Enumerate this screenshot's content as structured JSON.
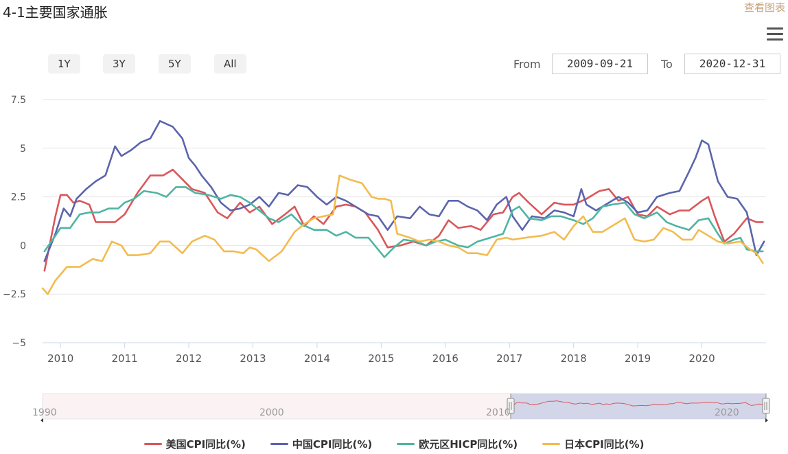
{
  "header": {
    "title": "4-1主要国家通胀",
    "view_link": "查看图表"
  },
  "range_selector": {
    "buttons": [
      "1Y",
      "3Y",
      "5Y",
      "All"
    ],
    "from_label": "From",
    "from_value": "2009-09-21",
    "to_label": "To",
    "to_value": "2020-12-31"
  },
  "navigator": {
    "labels": [
      "1990",
      "2000",
      "2010",
      "2020"
    ]
  },
  "colors": {
    "us": "#d9575a",
    "china": "#5b64ad",
    "euro": "#4db5a2",
    "japan": "#f3bb4e"
  },
  "chart_data": {
    "type": "line",
    "title": "",
    "xlabel": "",
    "ylabel": "",
    "ylim": [
      -5,
      7.5
    ],
    "xlim": [
      2009.72,
      2021.0
    ],
    "yticks": [
      -5,
      -2.5,
      0,
      2.5,
      5,
      7.5
    ],
    "ytick_labels": [
      "−5",
      "−2.5",
      "0",
      "2.5",
      "5",
      "7.5"
    ],
    "xticks": [
      2010,
      2011,
      2012,
      2013,
      2014,
      2015,
      2016,
      2017,
      2018,
      2019,
      2020
    ],
    "grid": true,
    "legend_position": "bottom",
    "series": [
      {
        "name": "美国CPI同比(%)",
        "key": "us",
        "points": [
          [
            2009.75,
            -1.3
          ],
          [
            2009.92,
            1.5
          ],
          [
            2010.0,
            2.6
          ],
          [
            2010.1,
            2.6
          ],
          [
            2010.2,
            2.2
          ],
          [
            2010.3,
            2.3
          ],
          [
            2010.45,
            2.1
          ],
          [
            2010.55,
            1.2
          ],
          [
            2010.7,
            1.2
          ],
          [
            2010.85,
            1.2
          ],
          [
            2011.0,
            1.6
          ],
          [
            2011.2,
            2.7
          ],
          [
            2011.4,
            3.6
          ],
          [
            2011.6,
            3.6
          ],
          [
            2011.75,
            3.9
          ],
          [
            2011.9,
            3.4
          ],
          [
            2012.05,
            2.9
          ],
          [
            2012.25,
            2.7
          ],
          [
            2012.45,
            1.7
          ],
          [
            2012.6,
            1.4
          ],
          [
            2012.8,
            2.2
          ],
          [
            2012.95,
            1.7
          ],
          [
            2013.1,
            2.0
          ],
          [
            2013.3,
            1.1
          ],
          [
            2013.5,
            1.6
          ],
          [
            2013.65,
            2.0
          ],
          [
            2013.8,
            1.0
          ],
          [
            2013.95,
            1.5
          ],
          [
            2014.1,
            1.1
          ],
          [
            2014.3,
            2.0
          ],
          [
            2014.45,
            2.1
          ],
          [
            2014.6,
            2.0
          ],
          [
            2014.75,
            1.7
          ],
          [
            2014.95,
            0.8
          ],
          [
            2015.1,
            -0.1
          ],
          [
            2015.3,
            0.0
          ],
          [
            2015.5,
            0.2
          ],
          [
            2015.7,
            0.0
          ],
          [
            2015.9,
            0.5
          ],
          [
            2016.05,
            1.3
          ],
          [
            2016.2,
            0.9
          ],
          [
            2016.4,
            1.0
          ],
          [
            2016.55,
            0.8
          ],
          [
            2016.75,
            1.6
          ],
          [
            2016.9,
            1.7
          ],
          [
            2017.05,
            2.5
          ],
          [
            2017.15,
            2.7
          ],
          [
            2017.3,
            2.2
          ],
          [
            2017.5,
            1.6
          ],
          [
            2017.7,
            2.2
          ],
          [
            2017.85,
            2.1
          ],
          [
            2018.0,
            2.1
          ],
          [
            2018.2,
            2.4
          ],
          [
            2018.4,
            2.8
          ],
          [
            2018.55,
            2.9
          ],
          [
            2018.7,
            2.3
          ],
          [
            2018.85,
            2.5
          ],
          [
            2019.0,
            1.6
          ],
          [
            2019.15,
            1.5
          ],
          [
            2019.3,
            2.0
          ],
          [
            2019.5,
            1.6
          ],
          [
            2019.65,
            1.8
          ],
          [
            2019.8,
            1.8
          ],
          [
            2020.0,
            2.3
          ],
          [
            2020.1,
            2.5
          ],
          [
            2020.2,
            1.5
          ],
          [
            2020.35,
            0.2
          ],
          [
            2020.5,
            0.6
          ],
          [
            2020.7,
            1.4
          ],
          [
            2020.85,
            1.2
          ],
          [
            2020.95,
            1.2
          ]
        ]
      },
      {
        "name": "中国CPI同比(%)",
        "key": "china",
        "points": [
          [
            2009.75,
            -0.8
          ],
          [
            2009.92,
            0.6
          ],
          [
            2010.05,
            1.9
          ],
          [
            2010.15,
            1.5
          ],
          [
            2010.25,
            2.4
          ],
          [
            2010.4,
            2.9
          ],
          [
            2010.55,
            3.3
          ],
          [
            2010.7,
            3.6
          ],
          [
            2010.85,
            5.1
          ],
          [
            2010.95,
            4.6
          ],
          [
            2011.1,
            4.9
          ],
          [
            2011.25,
            5.3
          ],
          [
            2011.4,
            5.5
          ],
          [
            2011.55,
            6.4
          ],
          [
            2011.75,
            6.1
          ],
          [
            2011.9,
            5.5
          ],
          [
            2012.0,
            4.5
          ],
          [
            2012.1,
            4.1
          ],
          [
            2012.2,
            3.6
          ],
          [
            2012.35,
            3.0
          ],
          [
            2012.5,
            2.2
          ],
          [
            2012.65,
            1.8
          ],
          [
            2012.8,
            1.9
          ],
          [
            2012.95,
            2.1
          ],
          [
            2013.1,
            2.5
          ],
          [
            2013.25,
            2.0
          ],
          [
            2013.4,
            2.7
          ],
          [
            2013.55,
            2.6
          ],
          [
            2013.7,
            3.1
          ],
          [
            2013.85,
            3.0
          ],
          [
            2014.0,
            2.5
          ],
          [
            2014.15,
            2.1
          ],
          [
            2014.3,
            2.5
          ],
          [
            2014.45,
            2.3
          ],
          [
            2014.6,
            2.0
          ],
          [
            2014.8,
            1.6
          ],
          [
            2014.95,
            1.5
          ],
          [
            2015.1,
            0.8
          ],
          [
            2015.25,
            1.5
          ],
          [
            2015.45,
            1.4
          ],
          [
            2015.6,
            2.0
          ],
          [
            2015.75,
            1.6
          ],
          [
            2015.9,
            1.5
          ],
          [
            2016.05,
            2.3
          ],
          [
            2016.2,
            2.3
          ],
          [
            2016.35,
            2.0
          ],
          [
            2016.5,
            1.8
          ],
          [
            2016.65,
            1.3
          ],
          [
            2016.8,
            2.1
          ],
          [
            2016.95,
            2.5
          ],
          [
            2017.05,
            1.5
          ],
          [
            2017.2,
            0.8
          ],
          [
            2017.35,
            1.5
          ],
          [
            2017.55,
            1.4
          ],
          [
            2017.7,
            1.8
          ],
          [
            2017.85,
            1.7
          ],
          [
            2018.0,
            1.5
          ],
          [
            2018.12,
            2.9
          ],
          [
            2018.2,
            2.1
          ],
          [
            2018.35,
            1.8
          ],
          [
            2018.5,
            2.1
          ],
          [
            2018.7,
            2.5
          ],
          [
            2018.85,
            2.2
          ],
          [
            2019.0,
            1.7
          ],
          [
            2019.15,
            1.8
          ],
          [
            2019.3,
            2.5
          ],
          [
            2019.5,
            2.7
          ],
          [
            2019.65,
            2.8
          ],
          [
            2019.8,
            3.8
          ],
          [
            2019.9,
            4.5
          ],
          [
            2020.0,
            5.4
          ],
          [
            2020.1,
            5.2
          ],
          [
            2020.25,
            3.3
          ],
          [
            2020.4,
            2.5
          ],
          [
            2020.55,
            2.4
          ],
          [
            2020.7,
            1.7
          ],
          [
            2020.85,
            -0.5
          ],
          [
            2020.97,
            0.2
          ]
        ]
      },
      {
        "name": "欧元区HICP同比(%)",
        "key": "euro",
        "points": [
          [
            2009.75,
            -0.3
          ],
          [
            2009.92,
            0.5
          ],
          [
            2010.0,
            0.9
          ],
          [
            2010.15,
            0.9
          ],
          [
            2010.3,
            1.6
          ],
          [
            2010.45,
            1.7
          ],
          [
            2010.6,
            1.7
          ],
          [
            2010.75,
            1.9
          ],
          [
            2010.9,
            1.9
          ],
          [
            2011.0,
            2.2
          ],
          [
            2011.15,
            2.4
          ],
          [
            2011.3,
            2.8
          ],
          [
            2011.5,
            2.7
          ],
          [
            2011.65,
            2.5
          ],
          [
            2011.8,
            3.0
          ],
          [
            2011.95,
            3.0
          ],
          [
            2012.1,
            2.7
          ],
          [
            2012.3,
            2.6
          ],
          [
            2012.5,
            2.4
          ],
          [
            2012.65,
            2.6
          ],
          [
            2012.8,
            2.5
          ],
          [
            2012.95,
            2.2
          ],
          [
            2013.1,
            1.8
          ],
          [
            2013.25,
            1.4
          ],
          [
            2013.4,
            1.2
          ],
          [
            2013.6,
            1.6
          ],
          [
            2013.75,
            1.1
          ],
          [
            2013.95,
            0.8
          ],
          [
            2014.15,
            0.8
          ],
          [
            2014.3,
            0.5
          ],
          [
            2014.45,
            0.7
          ],
          [
            2014.6,
            0.4
          ],
          [
            2014.8,
            0.4
          ],
          [
            2014.95,
            -0.2
          ],
          [
            2015.05,
            -0.6
          ],
          [
            2015.2,
            -0.1
          ],
          [
            2015.35,
            0.3
          ],
          [
            2015.55,
            0.2
          ],
          [
            2015.7,
            0.0
          ],
          [
            2015.85,
            0.2
          ],
          [
            2016.0,
            0.3
          ],
          [
            2016.2,
            0.0
          ],
          [
            2016.35,
            -0.1
          ],
          [
            2016.5,
            0.2
          ],
          [
            2016.7,
            0.4
          ],
          [
            2016.9,
            0.6
          ],
          [
            2017.05,
            1.8
          ],
          [
            2017.15,
            2.0
          ],
          [
            2017.3,
            1.4
          ],
          [
            2017.5,
            1.3
          ],
          [
            2017.65,
            1.5
          ],
          [
            2017.8,
            1.5
          ],
          [
            2018.0,
            1.3
          ],
          [
            2018.15,
            1.1
          ],
          [
            2018.3,
            1.4
          ],
          [
            2018.45,
            2.0
          ],
          [
            2018.6,
            2.1
          ],
          [
            2018.8,
            2.2
          ],
          [
            2018.95,
            1.6
          ],
          [
            2019.1,
            1.4
          ],
          [
            2019.3,
            1.7
          ],
          [
            2019.45,
            1.2
          ],
          [
            2019.6,
            1.0
          ],
          [
            2019.8,
            0.8
          ],
          [
            2019.95,
            1.3
          ],
          [
            2020.1,
            1.4
          ],
          [
            2020.25,
            0.6
          ],
          [
            2020.35,
            0.1
          ],
          [
            2020.5,
            0.3
          ],
          [
            2020.6,
            0.4
          ],
          [
            2020.7,
            -0.2
          ],
          [
            2020.85,
            -0.3
          ],
          [
            2020.95,
            -0.3
          ]
        ]
      },
      {
        "name": "日本CPI同比(%)",
        "key": "japan",
        "points": [
          [
            2009.72,
            -2.2
          ],
          [
            2009.8,
            -2.5
          ],
          [
            2009.92,
            -1.8
          ],
          [
            2010.1,
            -1.1
          ],
          [
            2010.3,
            -1.1
          ],
          [
            2010.5,
            -0.7
          ],
          [
            2010.65,
            -0.8
          ],
          [
            2010.8,
            0.2
          ],
          [
            2010.95,
            0.0
          ],
          [
            2011.05,
            -0.5
          ],
          [
            2011.2,
            -0.5
          ],
          [
            2011.4,
            -0.4
          ],
          [
            2011.55,
            0.2
          ],
          [
            2011.7,
            0.2
          ],
          [
            2011.9,
            -0.4
          ],
          [
            2012.05,
            0.2
          ],
          [
            2012.25,
            0.5
          ],
          [
            2012.4,
            0.3
          ],
          [
            2012.55,
            -0.3
          ],
          [
            2012.7,
            -0.3
          ],
          [
            2012.85,
            -0.4
          ],
          [
            2012.95,
            -0.1
          ],
          [
            2013.05,
            -0.2
          ],
          [
            2013.25,
            -0.8
          ],
          [
            2013.45,
            -0.3
          ],
          [
            2013.65,
            0.7
          ],
          [
            2013.8,
            1.1
          ],
          [
            2013.95,
            1.4
          ],
          [
            2014.1,
            1.5
          ],
          [
            2014.25,
            1.6
          ],
          [
            2014.35,
            3.6
          ],
          [
            2014.5,
            3.4
          ],
          [
            2014.7,
            3.2
          ],
          [
            2014.85,
            2.5
          ],
          [
            2014.95,
            2.4
          ],
          [
            2015.05,
            2.4
          ],
          [
            2015.15,
            2.3
          ],
          [
            2015.25,
            0.6
          ],
          [
            2015.45,
            0.4
          ],
          [
            2015.6,
            0.2
          ],
          [
            2015.75,
            0.3
          ],
          [
            2015.9,
            0.2
          ],
          [
            2016.05,
            0.0
          ],
          [
            2016.2,
            -0.1
          ],
          [
            2016.35,
            -0.4
          ],
          [
            2016.5,
            -0.4
          ],
          [
            2016.65,
            -0.5
          ],
          [
            2016.8,
            0.3
          ],
          [
            2016.95,
            0.4
          ],
          [
            2017.05,
            0.3
          ],
          [
            2017.25,
            0.4
          ],
          [
            2017.5,
            0.5
          ],
          [
            2017.7,
            0.7
          ],
          [
            2017.85,
            0.3
          ],
          [
            2018.0,
            1.0
          ],
          [
            2018.15,
            1.5
          ],
          [
            2018.3,
            0.7
          ],
          [
            2018.45,
            0.7
          ],
          [
            2018.6,
            1.0
          ],
          [
            2018.8,
            1.4
          ],
          [
            2018.95,
            0.3
          ],
          [
            2019.1,
            0.2
          ],
          [
            2019.25,
            0.3
          ],
          [
            2019.4,
            0.9
          ],
          [
            2019.55,
            0.7
          ],
          [
            2019.7,
            0.3
          ],
          [
            2019.85,
            0.3
          ],
          [
            2019.95,
            0.8
          ],
          [
            2020.1,
            0.5
          ],
          [
            2020.25,
            0.2
          ],
          [
            2020.4,
            0.1
          ],
          [
            2020.6,
            0.2
          ],
          [
            2020.75,
            -0.2
          ],
          [
            2020.85,
            -0.4
          ],
          [
            2020.95,
            -0.9
          ]
        ]
      }
    ]
  }
}
